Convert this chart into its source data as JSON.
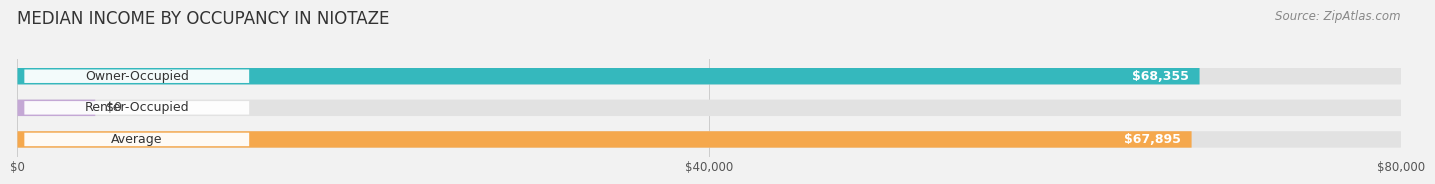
{
  "title": "MEDIAN INCOME BY OCCUPANCY IN NIOTAZE",
  "source": "Source: ZipAtlas.com",
  "categories": [
    "Owner-Occupied",
    "Renter-Occupied",
    "Average"
  ],
  "values": [
    68355,
    0,
    67895
  ],
  "bar_colors": [
    "#35b8bd",
    "#c4a8d5",
    "#f5a84d"
  ],
  "value_labels": [
    "$68,355",
    "$0",
    "$67,895"
  ],
  "xlim": [
    0,
    80000
  ],
  "xticks": [
    0,
    40000,
    80000
  ],
  "xtick_labels": [
    "$0",
    "$40,000",
    "$80,000"
  ],
  "background_color": "#f2f2f2",
  "bar_bg_color": "#e2e2e2",
  "bar_height": 0.52,
  "title_fontsize": 12,
  "label_fontsize": 9,
  "value_fontsize": 9,
  "source_fontsize": 8.5
}
